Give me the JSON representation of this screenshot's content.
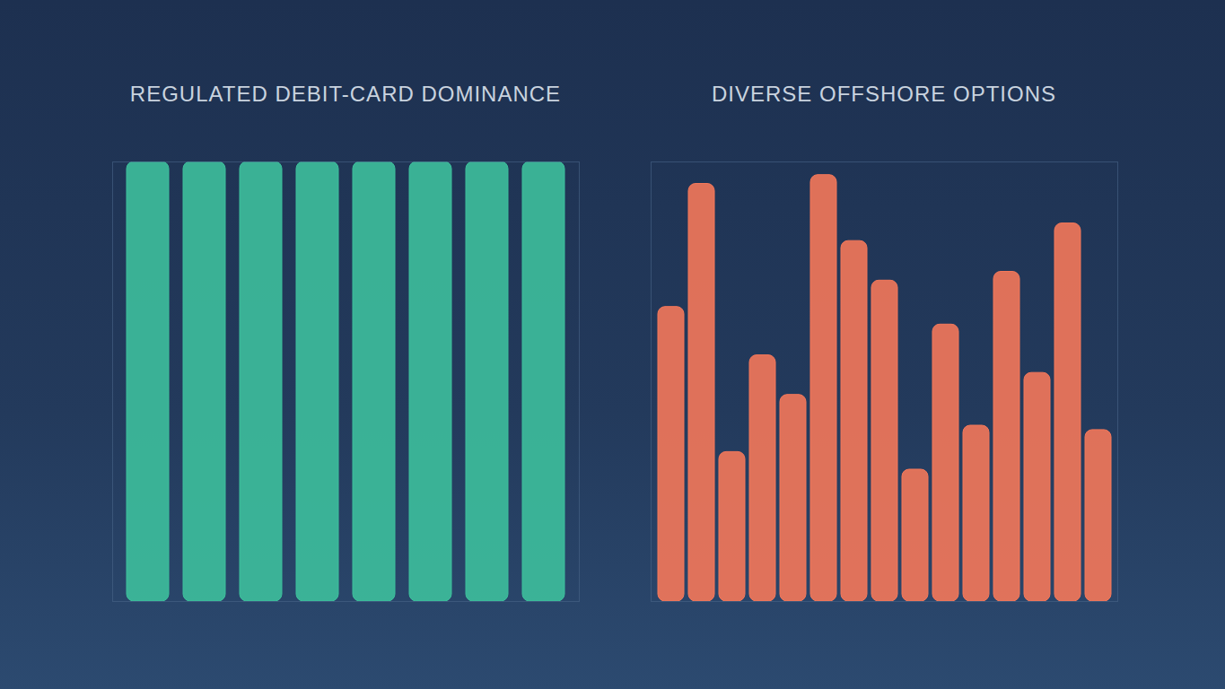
{
  "chart_data": [
    {
      "type": "bar",
      "title": "REGULATED DEBIT-CARD DOMINANCE",
      "categories": [
        null,
        null,
        null,
        null,
        null,
        null,
        null,
        null
      ],
      "values": [
        100,
        100,
        100,
        100,
        100,
        100,
        100,
        100
      ],
      "color": "#3dbf9c",
      "ylim": [
        0,
        100
      ],
      "tick_labels": false
    },
    {
      "type": "bar",
      "title": "DIVERSE OFFSHORE OPTIONS",
      "categories": [
        null,
        null,
        null,
        null,
        null,
        null,
        null,
        null,
        null,
        null,
        null,
        null,
        null,
        null,
        null
      ],
      "values": [
        67,
        95,
        34,
        56,
        47,
        97,
        82,
        73,
        30,
        63,
        40,
        75,
        52,
        86,
        39
      ],
      "color": "#f4785a",
      "ylim": [
        0,
        100
      ],
      "tick_labels": false
    }
  ]
}
